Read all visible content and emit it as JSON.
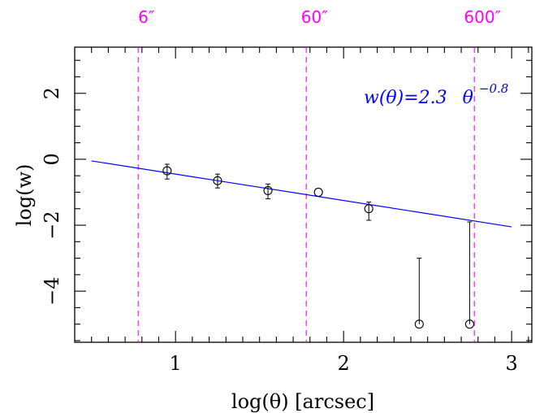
{
  "chart_data": {
    "type": "scatter",
    "xlabel": "log(θ) [arcsec]",
    "ylabel": "log(w)",
    "xlim": [
      0.4,
      3.12
    ],
    "ylim": [
      -5.55,
      3.4
    ],
    "x_ticks": [
      {
        "value": 1,
        "label": "1"
      },
      {
        "value": 2,
        "label": "2"
      },
      {
        "value": 3,
        "label": "3"
      }
    ],
    "y_ticks": [
      {
        "value": 2,
        "label": "2"
      },
      {
        "value": 0,
        "label": "0"
      },
      {
        "value": -2,
        "label": "−2"
      },
      {
        "value": -4,
        "label": "−4"
      }
    ],
    "x_minor_step": 0.1,
    "y_minor_step": 0.5,
    "points": [
      {
        "x": 0.95,
        "y": -0.35,
        "y_low": -0.6,
        "y_high": -0.15
      },
      {
        "x": 1.25,
        "y": -0.65,
        "y_low": -0.87,
        "y_high": -0.45
      },
      {
        "x": 1.55,
        "y": -0.95,
        "y_low": -1.2,
        "y_high": -0.75
      },
      {
        "x": 1.85,
        "y": -1.0,
        "y_low": -1.0,
        "y_high": -1.0
      },
      {
        "x": 2.15,
        "y": -1.5,
        "y_low": -1.85,
        "y_high": -1.3
      },
      {
        "x": 2.45,
        "y": -5.0,
        "y_low": -5.0,
        "y_high": -3.0
      },
      {
        "x": 2.75,
        "y": -5.0,
        "y_low": -5.0,
        "y_high": -1.9
      }
    ],
    "fit_line": {
      "x": [
        0.5,
        3.0
      ],
      "y": [
        -0.05,
        -2.05
      ],
      "color": "#0000ff"
    },
    "vlines": [
      {
        "x": 0.778,
        "label": "6″"
      },
      {
        "x": 1.778,
        "label": "60″"
      },
      {
        "x": 2.778,
        "label": "600″"
      }
    ],
    "vline_color": "#ff00ff",
    "annotation": {
      "lhs": "w(θ)=2.3",
      "base": "θ",
      "exponent": "−0.8",
      "color": "#0000ff"
    },
    "grid": false
  }
}
